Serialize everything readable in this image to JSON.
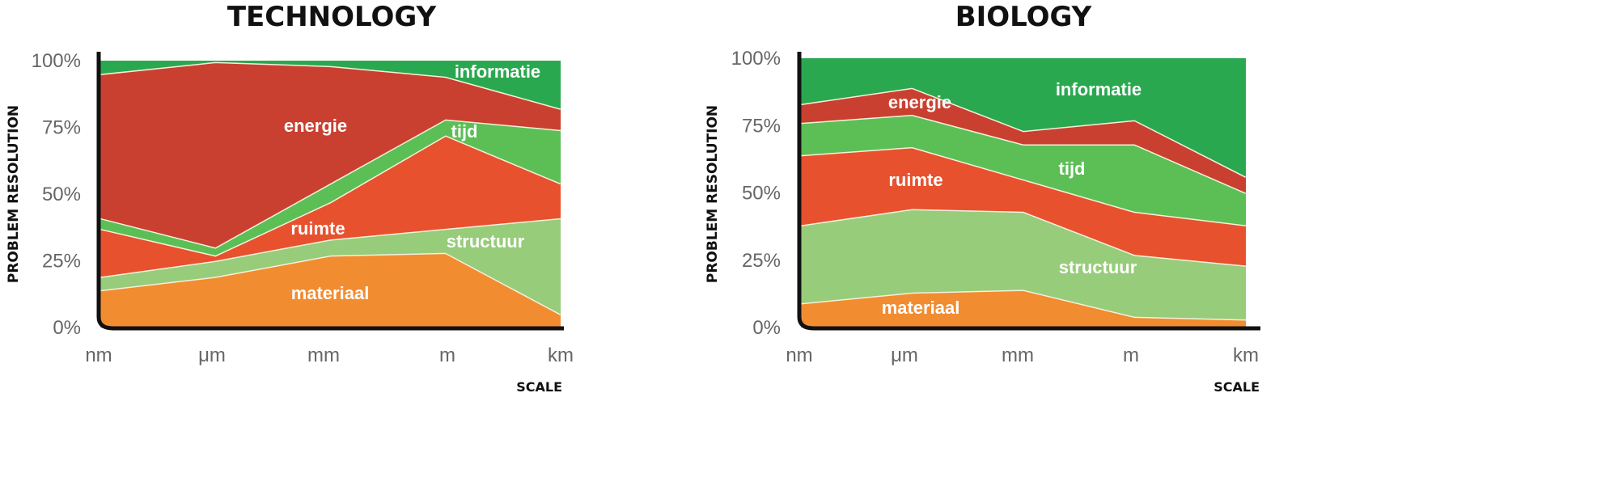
{
  "chart_data": [
    {
      "type": "area",
      "stacked": true,
      "title": "TECHNOLOGY",
      "xlabel": "SCALE",
      "ylabel": "PROBLEM RESOLUTION",
      "categories": [
        "nm",
        "μm",
        "mm",
        "m",
        "km"
      ],
      "yticks": [
        "0%",
        "25%",
        "50%",
        "75%",
        "100%"
      ],
      "ylim": [
        0,
        100
      ],
      "series": [
        {
          "name": "materiaal",
          "color": "#f28c30",
          "values": [
            14,
            19,
            27,
            28,
            5
          ]
        },
        {
          "name": "structuur",
          "color": "#97cc7a",
          "values": [
            5,
            6,
            6,
            9,
            36
          ]
        },
        {
          "name": "ruimte",
          "color": "#e8512e",
          "values": [
            18,
            2,
            14,
            35,
            13
          ]
        },
        {
          "name": "tijd",
          "color": "#5bbf55",
          "values": [
            4,
            3,
            7,
            6,
            20
          ]
        },
        {
          "name": "energie",
          "color": "#c94030",
          "values": [
            54,
            69.5,
            44,
            16,
            8
          ]
        },
        {
          "name": "informatie",
          "color": "#2aa84f",
          "values": [
            5,
            0.5,
            2,
            6,
            18
          ]
        }
      ]
    },
    {
      "type": "area",
      "stacked": true,
      "title": "BIOLOGY",
      "xlabel": "SCALE",
      "ylabel": "PROBLEM RESOLUTION",
      "categories": [
        "nm",
        "μm",
        "mm",
        "m",
        "km"
      ],
      "yticks": [
        "0%",
        "25%",
        "50%",
        "75%",
        "100%"
      ],
      "ylim": [
        0,
        100
      ],
      "series": [
        {
          "name": "materiaal",
          "color": "#f28c30",
          "values": [
            9,
            13,
            14,
            4,
            3
          ]
        },
        {
          "name": "structuur",
          "color": "#97cc7a",
          "values": [
            29,
            31,
            29,
            23,
            20
          ]
        },
        {
          "name": "ruimte",
          "color": "#e8512e",
          "values": [
            26,
            23,
            12,
            16,
            15
          ]
        },
        {
          "name": "tijd",
          "color": "#5bbf55",
          "values": [
            12,
            12,
            13,
            25,
            12
          ]
        },
        {
          "name": "energie",
          "color": "#c94030",
          "values": [
            7,
            10,
            5,
            9,
            6
          ]
        },
        {
          "name": "informatie",
          "color": "#2aa84f",
          "values": [
            17,
            11,
            27,
            23,
            44
          ]
        }
      ]
    }
  ]
}
